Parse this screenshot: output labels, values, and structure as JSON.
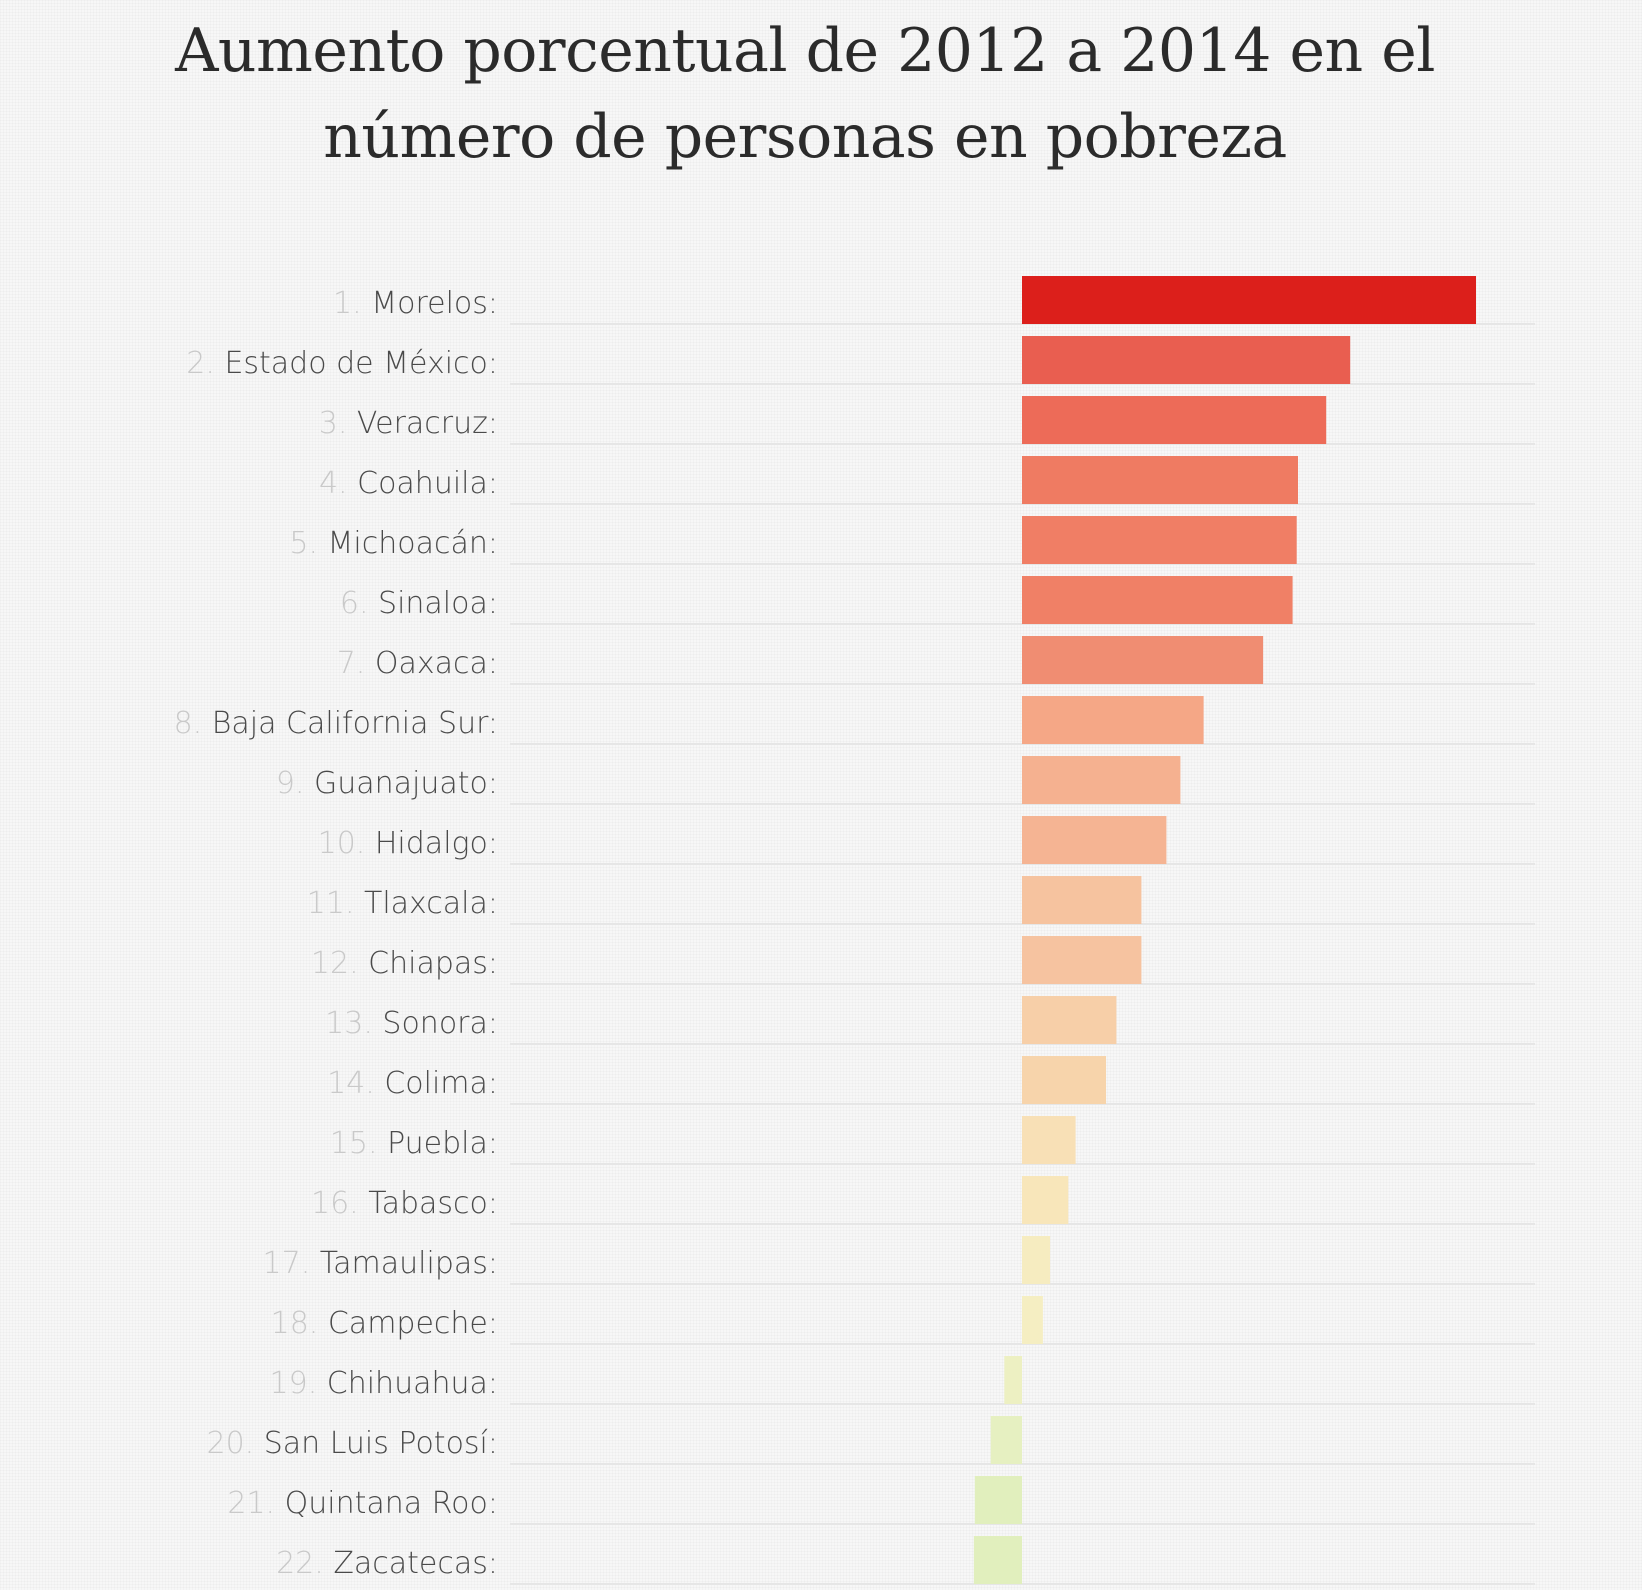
{
  "chart_data": {
    "type": "bar",
    "orientation": "horizontal",
    "title": "Aumento porcentual de 2012 a 2014 en el número de personas en pobreza",
    "title_lines": [
      "Aumento porcentual de 2012 a 2014 en el",
      "número de personas en pobreza"
    ],
    "xlabel": "",
    "ylabel": "",
    "grid": true,
    "legend": "none",
    "xlim": [
      -10,
      101
    ],
    "categories": [
      {
        "rank": "1.",
        "name": "Morelos:"
      },
      {
        "rank": "2.",
        "name": "Estado de México:"
      },
      {
        "rank": "3.",
        "name": "Veracruz:"
      },
      {
        "rank": "4.",
        "name": "Coahuila:"
      },
      {
        "rank": "5.",
        "name": "Michoacán:"
      },
      {
        "rank": "6.",
        "name": "Sinaloa:"
      },
      {
        "rank": "7.",
        "name": "Oaxaca:"
      },
      {
        "rank": "8.",
        "name": "Baja California Sur:"
      },
      {
        "rank": "9.",
        "name": "Guanajuato:"
      },
      {
        "rank": "10.",
        "name": "Hidalgo:"
      },
      {
        "rank": "11.",
        "name": "Tlaxcala:"
      },
      {
        "rank": "12.",
        "name": "Chiapas:"
      },
      {
        "rank": "13.",
        "name": "Sonora:"
      },
      {
        "rank": "14.",
        "name": "Colima:"
      },
      {
        "rank": "15.",
        "name": "Puebla:"
      },
      {
        "rank": "16.",
        "name": "Tabasco:"
      },
      {
        "rank": "17.",
        "name": "Tamaulipas:"
      },
      {
        "rank": "18.",
        "name": "Campeche:"
      },
      {
        "rank": "19.",
        "name": "Chihuahua:"
      },
      {
        "rank": "20.",
        "name": "San Luis Potosí:"
      },
      {
        "rank": "21.",
        "name": "Quintana Roo:"
      },
      {
        "rank": "22.",
        "name": "Zacatecas:"
      }
    ],
    "values": [
      100,
      72.3,
      67.0,
      60.8,
      60.5,
      59.6,
      53.1,
      40.0,
      34.9,
      31.8,
      26.3,
      26.3,
      20.8,
      18.5,
      11.8,
      10.2,
      6.2,
      4.6,
      -3.9,
      -6.9,
      -10.4,
      -10.6
    ],
    "colors": [
      "#dc1f1b",
      "#e95e50",
      "#ed6b58",
      "#ef7b62",
      "#f07e65",
      "#f08066",
      "#f08d72",
      "#f5a786",
      "#f5b190",
      "#f5b493",
      "#f6c39f",
      "#f6c3a0",
      "#f7cfa8",
      "#f7d4ab",
      "#f8e0b6",
      "#f8e6ba",
      "#f6ecc0",
      "#f5eec2",
      "#edf0c2",
      "#e6f0c1",
      "#e1efbd",
      "#e1efbd"
    ]
  }
}
